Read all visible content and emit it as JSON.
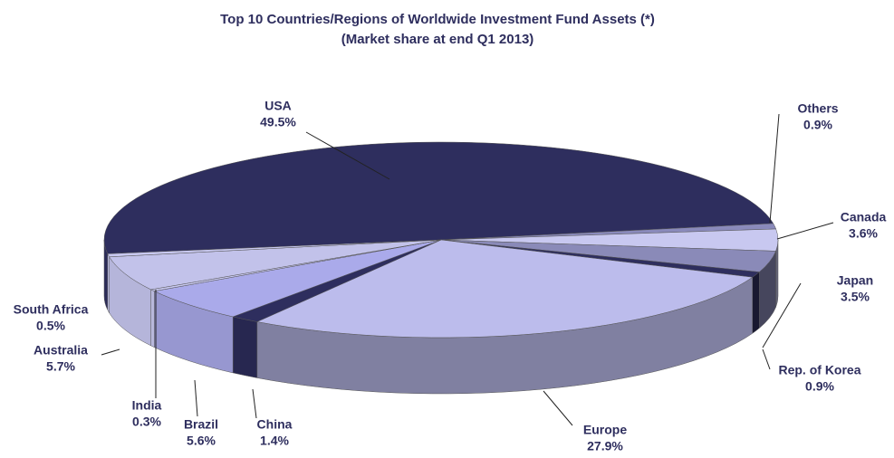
{
  "chart_data": {
    "type": "pie",
    "title": "Top 10 Countries/Regions of Worldwide  Investment  Fund  Assets (*)",
    "subtitle": "(Market  share at end Q1 2013)",
    "categories": [
      "USA",
      "Others",
      "Canada",
      "Japan",
      "Rep. of Korea",
      "Europe",
      "China",
      "Brazil",
      "India",
      "Australia",
      "South Africa"
    ],
    "values": [
      49.5,
      0.9,
      3.6,
      3.5,
      0.9,
      27.9,
      1.4,
      5.6,
      0.3,
      5.7,
      0.5
    ],
    "value_labels": [
      "49.5%",
      "0.9%",
      "3.6%",
      "3.5%",
      "0.9%",
      "27.9%",
      "1.4%",
      "5.6%",
      "0.3%",
      "5.7%",
      "0.5%"
    ],
    "colors": [
      "#2e2e5e",
      "#8a8abb",
      "#c8c8f0",
      "#8a8ab8",
      "#2e2e5e",
      "#bcbcec",
      "#2e2e5e",
      "#aaaaea",
      "#c8c8f0",
      "#c2c2ea",
      "#c8c8f0"
    ]
  }
}
